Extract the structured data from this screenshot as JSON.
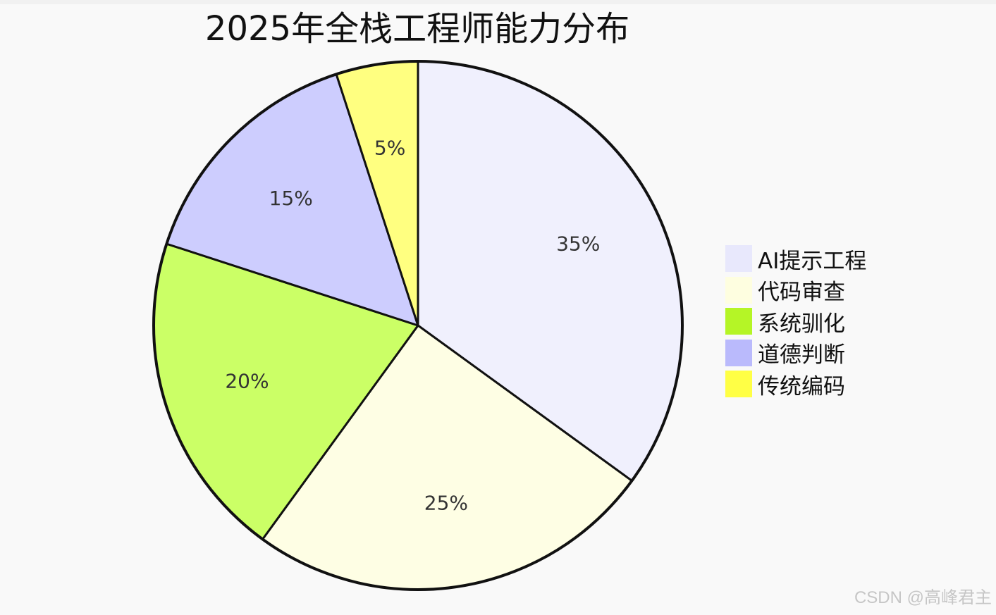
{
  "chart_data": {
    "type": "pie",
    "title": "2025年全栈工程师能力分布",
    "categories": [
      "AI提示工程",
      "代码审查",
      "系统驯化",
      "道德判断",
      "传统编码"
    ],
    "values": [
      35,
      25,
      20,
      15,
      5
    ],
    "labels": [
      "35%",
      "25%",
      "20%",
      "15%",
      "5%"
    ],
    "slice_colors": [
      "#f0f0fd",
      "#fefee4",
      "#cbff66",
      "#cdcdfe",
      "#ffff80"
    ],
    "legend_colors": [
      "#e8e8fc",
      "#fefee0",
      "#b5f526",
      "#babafc",
      "#ffff45"
    ],
    "start": "12 o'clock",
    "direction": "clockwise",
    "legend_position": "right"
  },
  "watermark": "CSDN @高峰君主"
}
